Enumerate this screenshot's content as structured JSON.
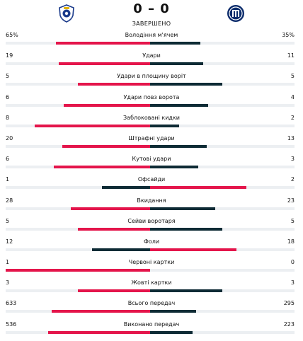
{
  "match": {
    "home_score": "0",
    "separator": "–",
    "away_score": "0",
    "status": "ЗАВЕРШЕНО"
  },
  "colors": {
    "lead": "#e4154b",
    "trail": "#0e2b35",
    "track": "#eceff2",
    "porto_blue": "#1a3a8a",
    "inter_navy": "#0a2b6b"
  },
  "icons": {
    "home_logo": "fc-porto-crest-icon",
    "away_logo": "inter-milan-crest-icon"
  },
  "stats": [
    {
      "label": "Володіння м'ячем",
      "home": "65%",
      "away": "35%",
      "home_value": 65,
      "away_value": 35
    },
    {
      "label": "Удари",
      "home": "19",
      "away": "11",
      "home_value": 19,
      "away_value": 11
    },
    {
      "label": "Удари в площину воріт",
      "home": "5",
      "away": "5",
      "home_value": 5,
      "away_value": 5
    },
    {
      "label": "Удари повз ворота",
      "home": "6",
      "away": "4",
      "home_value": 6,
      "away_value": 4
    },
    {
      "label": "Заблоковані кидки",
      "home": "8",
      "away": "2",
      "home_value": 8,
      "away_value": 2
    },
    {
      "label": "Штрафні удари",
      "home": "20",
      "away": "13",
      "home_value": 20,
      "away_value": 13
    },
    {
      "label": "Кутові удари",
      "home": "6",
      "away": "3",
      "home_value": 6,
      "away_value": 3
    },
    {
      "label": "Офсайди",
      "home": "1",
      "away": "2",
      "home_value": 1,
      "away_value": 2
    },
    {
      "label": "Вкидання",
      "home": "28",
      "away": "23",
      "home_value": 28,
      "away_value": 23
    },
    {
      "label": "Сейви воротаря",
      "home": "5",
      "away": "5",
      "home_value": 5,
      "away_value": 5
    },
    {
      "label": "Фоли",
      "home": "12",
      "away": "18",
      "home_value": 12,
      "away_value": 18
    },
    {
      "label": "Червоні картки",
      "home": "1",
      "away": "0",
      "home_value": 1,
      "away_value": 0
    },
    {
      "label": "Жовті картки",
      "home": "3",
      "away": "3",
      "home_value": 3,
      "away_value": 3
    },
    {
      "label": "Всього передач",
      "home": "633",
      "away": "295",
      "home_value": 633,
      "away_value": 295
    },
    {
      "label": "Виконано передач",
      "home": "536",
      "away": "223",
      "home_value": 536,
      "away_value": 223
    }
  ]
}
